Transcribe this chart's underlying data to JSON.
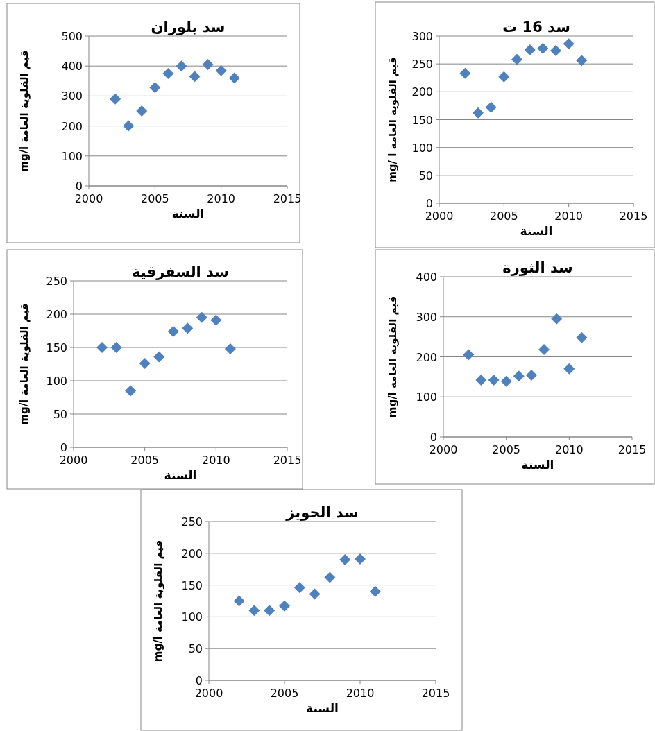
{
  "chart_data": [
    {
      "type": "scatter",
      "title": "سد بلوران",
      "xlabel": "السنة",
      "ylabel": "قيم القلوية العامة mg/l",
      "x": [
        2002,
        2003,
        2004,
        2005,
        2006,
        2007,
        2008,
        2009,
        2010,
        2011
      ],
      "series": [
        {
          "color": "#4f81bd",
          "values": [
            290,
            200,
            250,
            328,
            375,
            400,
            365,
            405,
            385,
            360
          ]
        }
      ],
      "xlim": [
        2000,
        2015
      ],
      "xticks": [
        2000,
        2005,
        2010,
        2015
      ],
      "ylim": [
        0,
        500
      ],
      "yticks": [
        0,
        100,
        200,
        300,
        400,
        500
      ],
      "grid": "y",
      "marker": "diamond"
    },
    {
      "type": "scatter",
      "title": "سد 16 ت",
      "xlabel": "السنة",
      "ylabel": "قيم القلوية العامة mg/ l",
      "x": [
        2002,
        2003,
        2004,
        2005,
        2006,
        2007,
        2008,
        2009,
        2010,
        2011
      ],
      "series": [
        {
          "color": "#4f81bd",
          "values": [
            233,
            162,
            172,
            227,
            258,
            275,
            278,
            274,
            286,
            256
          ]
        }
      ],
      "xlim": [
        2000,
        2015
      ],
      "xticks": [
        2000,
        2005,
        2010,
        2015
      ],
      "ylim": [
        0,
        300
      ],
      "yticks": [
        0,
        50,
        100,
        150,
        200,
        250,
        300
      ],
      "grid": "y",
      "marker": "diamond"
    },
    {
      "type": "scatter",
      "title": "سد السفرقية",
      "xlabel": "السنة",
      "ylabel": "قيم القلوية العامة mg/l",
      "x": [
        2002,
        2003,
        2004,
        2005,
        2006,
        2007,
        2008,
        2009,
        2010,
        2011
      ],
      "series": [
        {
          "color": "#4f81bd",
          "values": [
            150,
            150,
            85,
            126,
            136,
            174,
            179,
            195,
            191,
            148
          ]
        }
      ],
      "xlim": [
        2000,
        2015
      ],
      "xticks": [
        2000,
        2005,
        2010,
        2015
      ],
      "ylim": [
        0,
        250
      ],
      "yticks": [
        0,
        50,
        100,
        150,
        200,
        250
      ],
      "grid": "y",
      "marker": "diamond"
    },
    {
      "type": "scatter",
      "title": "سد الثورة",
      "xlabel": "السنة",
      "ylabel": "قيم القلوية العامة mg/l",
      "x": [
        2002,
        2003,
        2004,
        2005,
        2006,
        2007,
        2008,
        2009,
        2010,
        2011
      ],
      "series": [
        {
          "color": "#4f81bd",
          "values": [
            205,
            142,
            142,
            139,
            152,
            154,
            218,
            295,
            170,
            248
          ]
        }
      ],
      "xlim": [
        2000,
        2015
      ],
      "xticks": [
        2000,
        2005,
        2010,
        2015
      ],
      "ylim": [
        0,
        400
      ],
      "yticks": [
        0,
        100,
        200,
        300,
        400
      ],
      "grid": "y",
      "marker": "diamond"
    },
    {
      "type": "scatter",
      "title": "سد الحويز",
      "xlabel": "السنة",
      "ylabel": "قيم القلوية العامة mg/l",
      "x": [
        2002,
        2003,
        2004,
        2005,
        2006,
        2007,
        2008,
        2009,
        2010,
        2011
      ],
      "series": [
        {
          "color": "#4f81bd",
          "values": [
            125,
            110,
            110,
            117,
            146,
            136,
            162,
            190,
            191,
            140
          ]
        }
      ],
      "xlim": [
        2000,
        2015
      ],
      "xticks": [
        2000,
        2005,
        2010,
        2015
      ],
      "ylim": [
        0,
        250
      ],
      "yticks": [
        0,
        50,
        100,
        150,
        200,
        250
      ],
      "grid": "y",
      "marker": "diamond"
    }
  ]
}
